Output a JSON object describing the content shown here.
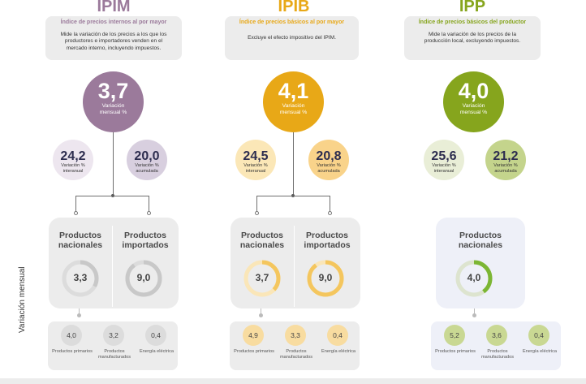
{
  "colors": {
    "ipim_main": "#9b7a9b",
    "ipim_light1": "#ede6ef",
    "ipim_light2": "#d8cfdf",
    "ipim_ring": "#c8c8c8",
    "ipib_main": "#e8a817",
    "ipib_light1": "#fbe7b7",
    "ipib_light2": "#f9d38a",
    "ipib_ring": "#f4c65e",
    "ipp_main": "#86a51d",
    "ipp_light1": "#e9eed7",
    "ipp_light2": "#c4d48c",
    "ipp_ring": "#7cb634",
    "ipp_panel": "#eef0f8"
  },
  "side_label": "Variación mensual",
  "sections": [
    {
      "title": "IPIM",
      "subtitle": "Índice de precios internos al por mayor",
      "description": "Mide la variación de los precios a los que los productores e importadores venden en el mercado interno, incluyendo impuestos.",
      "main_value": "3,7",
      "main_label": "Variación mensual %",
      "interanual_value": "24,2",
      "interanual_label": "Variación % interanual",
      "acumulada_value": "20,0",
      "acumulada_label": "Variación % acumulada",
      "products": [
        {
          "label": "Productos nacionales",
          "value": "3,3",
          "fill": 0.33
        },
        {
          "label": "Productos importados",
          "value": "9,0",
          "fill": 0.9
        }
      ],
      "breakdown": [
        {
          "value": "4,0",
          "label": "Productos primarios"
        },
        {
          "value": "3,2",
          "label": "Productos manufacturados"
        },
        {
          "value": "0,4",
          "label": "Energía eléctrica"
        }
      ]
    },
    {
      "title": "IPIB",
      "subtitle": "Índice de precios básicos al por mayor",
      "description": "Excluye el efecto impositivo del IPIM.",
      "main_value": "4,1",
      "main_label": "Variación mensual %",
      "interanual_value": "24,5",
      "interanual_label": "Variación % interanual",
      "acumulada_value": "20,8",
      "acumulada_label": "Variación % acumulada",
      "products": [
        {
          "label": "Productos nacionales",
          "value": "3,7",
          "fill": 0.37
        },
        {
          "label": "Productos importados",
          "value": "9,0",
          "fill": 0.9
        }
      ],
      "breakdown": [
        {
          "value": "4,9",
          "label": "Productos primarios"
        },
        {
          "value": "3,3",
          "label": "Productos manufacturados"
        },
        {
          "value": "0,4",
          "label": "Energía eléctrica"
        }
      ]
    },
    {
      "title": "IPP",
      "subtitle": "Índice de precios básicos del productor",
      "description": "Mide la variación de los precios de la producción local, excluyendo impuestos.",
      "main_value": "4,0",
      "main_label": "Variación mensual %",
      "interanual_value": "25,6",
      "interanual_label": "Variación % interanual",
      "acumulada_value": "21,2",
      "acumulada_label": "Variación % acumulada",
      "products": [
        {
          "label": "Productos nacionales",
          "value": "4,0",
          "fill": 0.4
        }
      ],
      "breakdown": [
        {
          "value": "5,2",
          "label": "Productos primarios"
        },
        {
          "value": "3,6",
          "label": "Productos manufacturados"
        },
        {
          "value": "0,4",
          "label": "Energía eléctrica"
        }
      ]
    }
  ]
}
